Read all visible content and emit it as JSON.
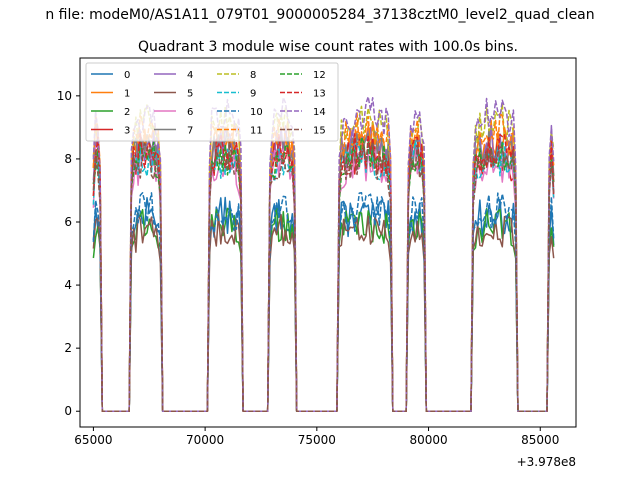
{
  "chart_data": {
    "type": "line",
    "suptitle": "n file: modeM0/AS1A11_079T01_9000005284_37138cztM0_level2_quad_clean",
    "title": "Quadrant 3 module wise count rates with 100.0s bins.",
    "xlabel": "",
    "ylabel": "",
    "x_offset_label": "+3.978e8",
    "xlim": [
      64400,
      86600
    ],
    "ylim": [
      -0.5,
      11.2
    ],
    "xticks": [
      65000,
      70000,
      75000,
      80000,
      85000
    ],
    "xtick_labels": [
      "65000",
      "70000",
      "75000",
      "80000",
      "85000"
    ],
    "yticks": [
      0,
      2,
      4,
      6,
      8,
      10
    ],
    "ytick_labels": [
      "0",
      "2",
      "4",
      "6",
      "8",
      "10"
    ],
    "grid": false,
    "legend": {
      "placement": "top-left",
      "columns": 4
    },
    "bin_size_s": 100,
    "segments": [
      {
        "start": 65000,
        "end": 65300
      },
      {
        "start": 66700,
        "end": 68000
      },
      {
        "start": 70200,
        "end": 71600
      },
      {
        "start": 72900,
        "end": 74000
      },
      {
        "start": 76000,
        "end": 78300
      },
      {
        "start": 79100,
        "end": 79800
      },
      {
        "start": 82000,
        "end": 83900
      },
      {
        "start": 85400,
        "end": 85600
      }
    ],
    "series": [
      {
        "name": "0",
        "color": "#1f77b4",
        "dash": "solid",
        "level_low": 5.9,
        "level_high": 6.2
      },
      {
        "name": "1",
        "color": "#ff7f0e",
        "dash": "solid",
        "level_low": 8.0,
        "level_high": 8.7
      },
      {
        "name": "2",
        "color": "#2ca02c",
        "dash": "solid",
        "level_low": 5.4,
        "level_high": 6.0
      },
      {
        "name": "3",
        "color": "#d62728",
        "dash": "solid",
        "level_low": 7.3,
        "level_high": 8.2
      },
      {
        "name": "4",
        "color": "#9467bd",
        "dash": "solid",
        "level_low": 7.6,
        "level_high": 8.5
      },
      {
        "name": "5",
        "color": "#8c564b",
        "dash": "solid",
        "level_low": 5.2,
        "level_high": 5.8
      },
      {
        "name": "6",
        "color": "#e377c2",
        "dash": "solid",
        "level_low": 7.0,
        "level_high": 7.9
      },
      {
        "name": "7",
        "color": "#7f7f7f",
        "dash": "solid",
        "level_low": 7.7,
        "level_high": 8.4
      },
      {
        "name": "8",
        "color": "#bcbd22",
        "dash": "dashed",
        "level_low": 8.3,
        "level_high": 9.2
      },
      {
        "name": "9",
        "color": "#17becf",
        "dash": "dashed",
        "level_low": 7.4,
        "level_high": 8.0
      },
      {
        "name": "10",
        "color": "#1f77b4",
        "dash": "dashed",
        "level_low": 5.8,
        "level_high": 6.4
      },
      {
        "name": "11",
        "color": "#ff7f0e",
        "dash": "dashed",
        "level_low": 8.1,
        "level_high": 8.9
      },
      {
        "name": "12",
        "color": "#2ca02c",
        "dash": "dashed",
        "level_low": 7.3,
        "level_high": 8.1
      },
      {
        "name": "13",
        "color": "#d62728",
        "dash": "dashed",
        "level_low": 7.5,
        "level_high": 8.3
      },
      {
        "name": "14",
        "color": "#9467bd",
        "dash": "dashed",
        "level_low": 8.4,
        "level_high": 9.5
      },
      {
        "name": "15",
        "color": "#8c564b",
        "dash": "dashed",
        "level_low": 7.2,
        "level_high": 8.0
      }
    ]
  }
}
